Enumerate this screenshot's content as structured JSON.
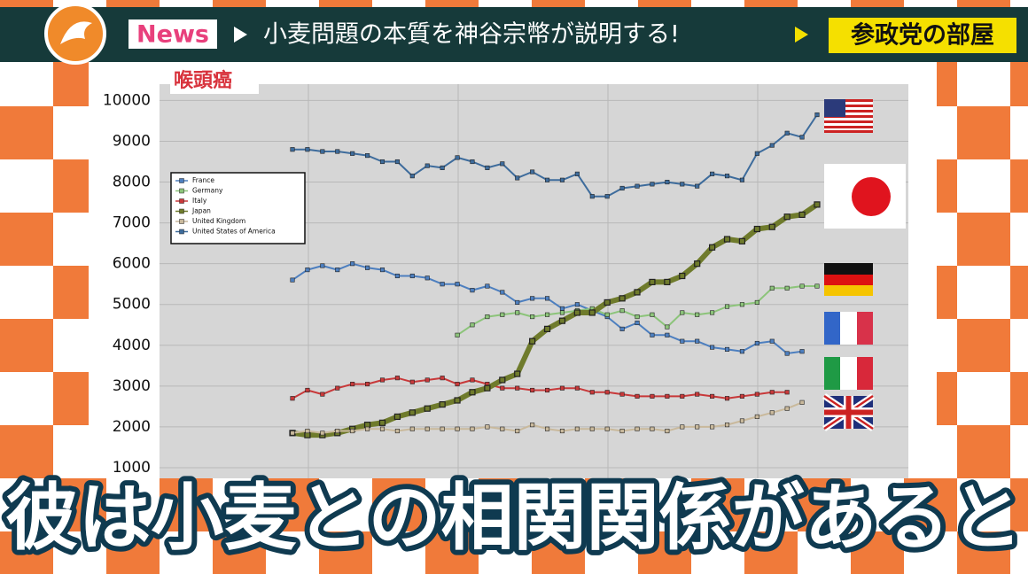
{
  "header": {
    "tag": "News",
    "title": "小麦問題の本質を神谷宗幣が説明する!",
    "channel": "参政党の部屋"
  },
  "caption": "彼は小麦との相関関係があると",
  "chart_data": {
    "type": "line",
    "title": "喉頭癌",
    "categories": [
      null,
      null,
      null,
      null,
      null,
      null,
      null,
      null,
      null,
      null,
      null,
      null,
      null,
      null,
      null,
      null,
      null,
      null,
      null,
      null,
      null,
      null,
      null,
      null,
      null,
      null,
      null,
      null,
      null,
      null,
      null,
      null,
      null,
      null,
      null,
      null
    ],
    "ylim": [
      1000,
      10400
    ],
    "yticks": [
      1000,
      2000,
      3000,
      4000,
      5000,
      6000,
      7000,
      8000,
      9000,
      10000
    ],
    "grid": true,
    "legend": "upper left",
    "series": [
      {
        "name": "France",
        "color": "#4d7fbf",
        "values": [
          5600,
          5850,
          5950,
          5850,
          6000,
          5900,
          5850,
          5700,
          5700,
          5650,
          5500,
          5500,
          5350,
          5450,
          5300,
          5050,
          5150,
          5150,
          4900,
          5000,
          4850,
          4700,
          4400,
          4550,
          4250,
          4250,
          4100,
          4100,
          3950,
          3900,
          3850,
          4050,
          4100,
          3800,
          3850,
          null
        ]
      },
      {
        "name": "Germany",
        "color": "#8cc47a",
        "values": [
          null,
          null,
          null,
          null,
          null,
          null,
          null,
          null,
          null,
          null,
          null,
          4250,
          4500,
          4700,
          4750,
          4800,
          4700,
          4750,
          4800,
          4850,
          4900,
          4750,
          4850,
          4700,
          4750,
          4450,
          4800,
          4750,
          4800,
          4950,
          5000,
          5050,
          5400,
          5400,
          5450,
          5450
        ]
      },
      {
        "name": "Italy",
        "color": "#c8393a",
        "values": [
          2700,
          2900,
          2800,
          2950,
          3050,
          3050,
          3150,
          3200,
          3100,
          3150,
          3200,
          3050,
          3150,
          3050,
          2950,
          2950,
          2900,
          2900,
          2950,
          2950,
          2850,
          2850,
          2800,
          2750,
          2750,
          2750,
          2750,
          2800,
          2750,
          2700,
          2750,
          2800,
          2850,
          2850,
          null,
          null
        ]
      },
      {
        "name": "Japan",
        "color": "#6f7b2c",
        "values": [
          1850,
          1800,
          1800,
          1850,
          1950,
          2050,
          2100,
          2250,
          2350,
          2450,
          2550,
          2650,
          2850,
          2950,
          3150,
          3300,
          4100,
          4400,
          4600,
          4800,
          4800,
          5050,
          5150,
          5300,
          5550,
          5550,
          5700,
          6000,
          6400,
          6600,
          6550,
          6850,
          6900,
          7150,
          7200,
          7450
        ]
      },
      {
        "name": "United Kingdom",
        "color": "#c9b99c",
        "values": [
          1850,
          1900,
          1850,
          1900,
          1900,
          1950,
          1950,
          1900,
          1950,
          1950,
          1950,
          1950,
          1950,
          2000,
          1950,
          1900,
          2050,
          1950,
          1900,
          1950,
          1950,
          1950,
          1900,
          1950,
          1950,
          1900,
          2000,
          2000,
          2000,
          2050,
          2150,
          2250,
          2350,
          2450,
          2600,
          null
        ]
      },
      {
        "name": "United States of America",
        "color": "#3e6c9c",
        "values": [
          8800,
          8800,
          8750,
          8750,
          8700,
          8650,
          8500,
          8500,
          8150,
          8400,
          8350,
          8600,
          8500,
          8350,
          8450,
          8100,
          8250,
          8050,
          8050,
          8200,
          7650,
          7650,
          7850,
          7900,
          7950,
          8000,
          7950,
          7900,
          8200,
          8150,
          8050,
          8700,
          8900,
          9200,
          9100,
          9650
        ]
      }
    ]
  }
}
